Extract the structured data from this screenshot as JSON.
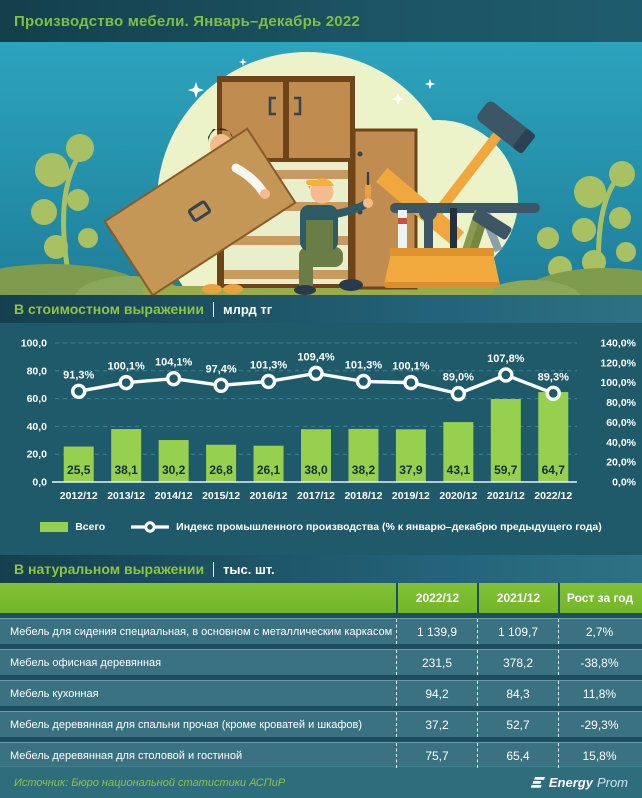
{
  "header": {
    "title": "Производство мебели. Январь–декабрь 2022"
  },
  "sections": {
    "value": {
      "label": "В стоимостном выражении",
      "unit": "млрд тг"
    },
    "natural": {
      "label": "В натуральном выражении",
      "unit": "тыс. шт."
    }
  },
  "chart_data": {
    "type": "bar",
    "subtype": "combo bar+line, dual axis",
    "title": "В стоимостном выражении, млрд тг",
    "categories": [
      "2012/12",
      "2013/12",
      "2014/12",
      "2015/12",
      "2016/12",
      "2017/12",
      "2018/12",
      "2019/12",
      "2020/12",
      "2021/12",
      "2022/12"
    ],
    "series": [
      {
        "name": "Всего",
        "type": "bar",
        "axis": "left",
        "color": "#97d04e",
        "values": [
          25.5,
          38.1,
          30.2,
          26.8,
          26.1,
          38.0,
          38.2,
          37.9,
          43.1,
          59.7,
          64.7
        ],
        "labels": [
          "25,5",
          "38,1",
          "30,2",
          "26,8",
          "26,1",
          "38,0",
          "38,2",
          "37,9",
          "43,1",
          "59,7",
          "64,7"
        ]
      },
      {
        "name": "Индекс промышленного производства (% к январю–декабрю предыдущего года)",
        "type": "line",
        "axis": "right",
        "color": "#ffffff",
        "values": [
          91.3,
          100.1,
          104.1,
          97.4,
          101.3,
          109.4,
          101.3,
          100.1,
          89.0,
          107.8,
          89.3
        ],
        "labels": [
          "91,3%",
          "100,1%",
          "104,1%",
          "97,4%",
          "101,3%",
          "109,4%",
          "101,3%",
          "100,1%",
          "89,0%",
          "107,8%",
          "89,3%"
        ]
      }
    ],
    "left_axis": {
      "min": 0,
      "max": 100,
      "step": 20,
      "tick_labels": [
        "0,0",
        "20,0",
        "40,0",
        "60,0",
        "80,0",
        "100,0"
      ]
    },
    "right_axis": {
      "min": 0,
      "max": 140,
      "step": 20,
      "tick_labels": [
        "0,0%",
        "20,0%",
        "40,0%",
        "60,0%",
        "80,0%",
        "100,0%",
        "120,0%",
        "140,0%"
      ]
    },
    "grid": "dashed horizontal",
    "legend_position": "bottom"
  },
  "legend": {
    "bar_label": "Всего",
    "line_label": "Индекс промышленного производства (% к январю–декабрю предыдущего года)"
  },
  "table": {
    "columns": [
      "2022/12",
      "2021/12",
      "Рост за год"
    ],
    "rows": [
      {
        "label": "Мебель для сидения специальная, в основном с металлическим каркасом",
        "v2022": "1 139,9",
        "v2021": "1 109,7",
        "growth": "2,7%"
      },
      {
        "label": "Мебель офисная деревянная",
        "v2022": "231,5",
        "v2021": "378,2",
        "growth": "-38,8%"
      },
      {
        "label": "Мебель кухонная",
        "v2022": "94,2",
        "v2021": "84,3",
        "growth": "11,8%"
      },
      {
        "label": "Мебель деревянная для спальни прочая (кроме кроватей и шкафов)",
        "v2022": "37,2",
        "v2021": "52,7",
        "growth": "-29,3%"
      },
      {
        "label": "Мебель деревянная для столовой и гостиной",
        "v2022": "75,7",
        "v2021": "65,4",
        "growth": "15,8%"
      }
    ]
  },
  "footer": {
    "source": "Источник: Бюро национальной статистики АСПиР",
    "brand_bold": "Energy",
    "brand_light": "Prom"
  },
  "colors": {
    "accent_green": "#8dc63f",
    "bar_green": "#97d04e",
    "table_header_green": "#77b92c",
    "chart_bg": "#1e5a6a",
    "row_bg": "#3a7282",
    "hero_top": "#2da3bd",
    "hero_bottom": "#1f7e99"
  }
}
